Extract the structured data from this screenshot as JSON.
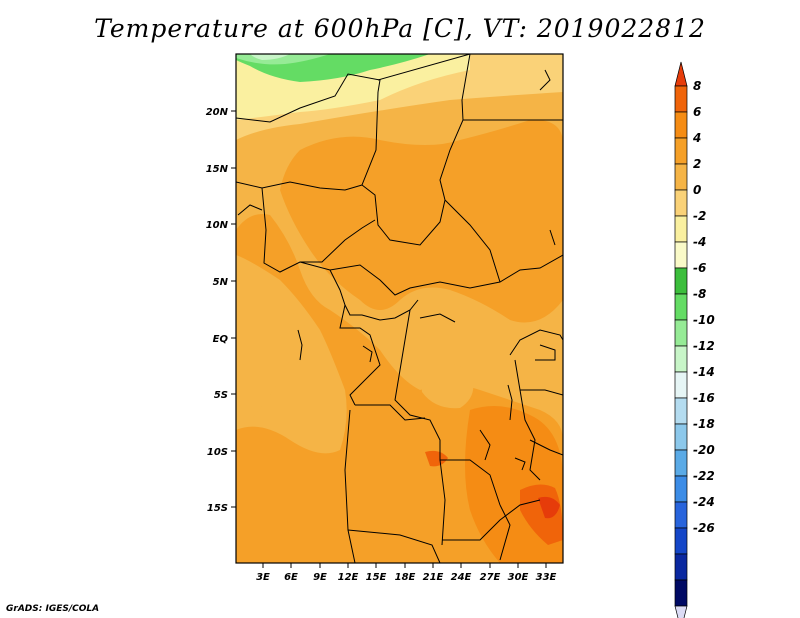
{
  "title": "Temperature at 600hPa [C], VT: 2019022812",
  "credit": "GrADS: IGES/COLA",
  "map": {
    "lon_labels": [
      "3E",
      "6E",
      "9E",
      "12E",
      "15E",
      "18E",
      "21E",
      "24E",
      "27E",
      "30E",
      "33E"
    ],
    "lat_labels": [
      "20N",
      "15N",
      "10N",
      "5N",
      "EQ",
      "5S",
      "10S",
      "15S"
    ]
  },
  "colorbar": {
    "levels": [
      "8",
      "6",
      "4",
      "2",
      "0",
      "-2",
      "-4",
      "-6",
      "-8",
      "-10",
      "-12",
      "-14",
      "-16",
      "-18",
      "-20",
      "-22",
      "-24",
      "-26"
    ],
    "colors": [
      "#e63c0a",
      "#f0640a",
      "#f58c14",
      "#f5a028",
      "#f5b446",
      "#fad278",
      "#faf0a0",
      "#fafac8",
      "#3cbe3c",
      "#64dc64",
      "#96eb96",
      "#c8f5c8",
      "#e6f5f5",
      "#b4dcf0",
      "#8cc8eb",
      "#5aaae6",
      "#3c8ce6",
      "#2864dc",
      "#1446c8",
      "#0a28a0",
      "#000a64",
      "#dcdcf5"
    ]
  }
}
